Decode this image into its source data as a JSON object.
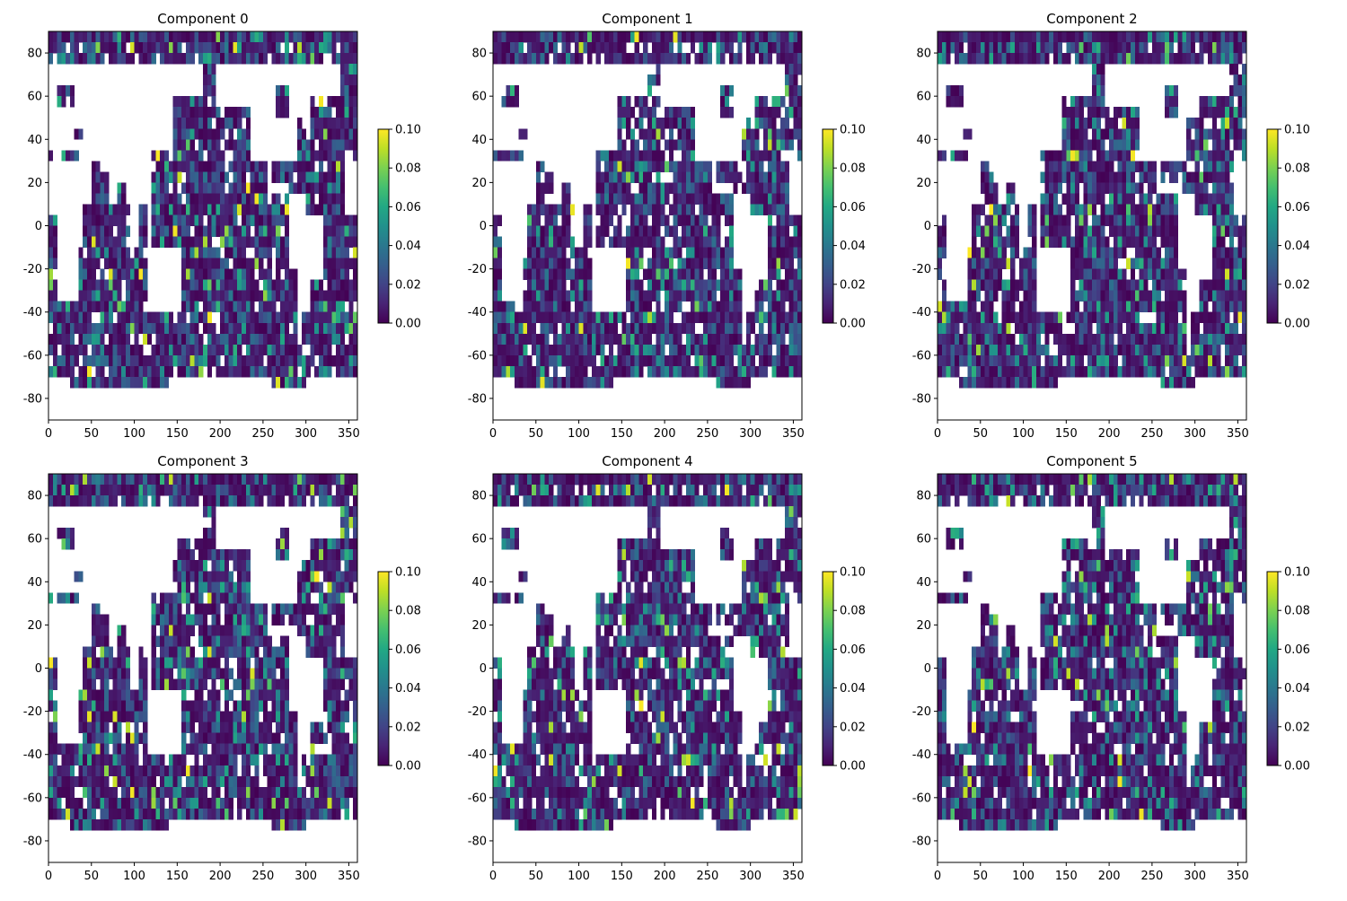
{
  "chart_data": [
    {
      "type": "heatmap",
      "title": "Component 0",
      "seed": 11,
      "xlim": [
        0,
        360
      ],
      "ylim": [
        -90,
        90
      ],
      "x_ticks": [
        "0",
        "50",
        "100",
        "150",
        "200",
        "250",
        "300",
        "350"
      ],
      "y_ticks": [
        "80",
        "60",
        "40",
        "20",
        "0",
        "-20",
        "-40",
        "-60",
        "-80"
      ],
      "colorbar": {
        "vmin": 0.0,
        "vmax": 0.1,
        "ticks": [
          "0.00",
          "0.02",
          "0.04",
          "0.06",
          "0.08",
          "0.10"
        ]
      },
      "colormap": "viridis",
      "land_color": "#ffffff"
    },
    {
      "type": "heatmap",
      "title": "Component 1",
      "seed": 23,
      "xlim": [
        0,
        360
      ],
      "ylim": [
        -90,
        90
      ],
      "x_ticks": [
        "0",
        "50",
        "100",
        "150",
        "200",
        "250",
        "300",
        "350"
      ],
      "y_ticks": [
        "80",
        "60",
        "40",
        "20",
        "0",
        "-20",
        "-40",
        "-60",
        "-80"
      ],
      "colorbar": {
        "vmin": 0.0,
        "vmax": 0.1,
        "ticks": [
          "0.00",
          "0.02",
          "0.04",
          "0.06",
          "0.08",
          "0.10"
        ]
      },
      "colormap": "viridis",
      "land_color": "#ffffff"
    },
    {
      "type": "heatmap",
      "title": "Component 2",
      "seed": 37,
      "xlim": [
        0,
        360
      ],
      "ylim": [
        -90,
        90
      ],
      "x_ticks": [
        "0",
        "50",
        "100",
        "150",
        "200",
        "250",
        "300",
        "350"
      ],
      "y_ticks": [
        "80",
        "60",
        "40",
        "20",
        "0",
        "-20",
        "-40",
        "-60",
        "-80"
      ],
      "colorbar": {
        "vmin": 0.0,
        "vmax": 0.1,
        "ticks": [
          "0.00",
          "0.02",
          "0.04",
          "0.06",
          "0.08",
          "0.10"
        ]
      },
      "colormap": "viridis",
      "land_color": "#ffffff"
    },
    {
      "type": "heatmap",
      "title": "Component 3",
      "seed": 41,
      "xlim": [
        0,
        360
      ],
      "ylim": [
        -90,
        90
      ],
      "x_ticks": [
        "0",
        "50",
        "100",
        "150",
        "200",
        "250",
        "300",
        "350"
      ],
      "y_ticks": [
        "80",
        "60",
        "40",
        "20",
        "0",
        "-20",
        "-40",
        "-60",
        "-80"
      ],
      "colorbar": {
        "vmin": 0.0,
        "vmax": 0.1,
        "ticks": [
          "0.00",
          "0.02",
          "0.04",
          "0.06",
          "0.08",
          "0.10"
        ]
      },
      "colormap": "viridis",
      "land_color": "#ffffff"
    },
    {
      "type": "heatmap",
      "title": "Component 4",
      "seed": 53,
      "xlim": [
        0,
        360
      ],
      "ylim": [
        -90,
        90
      ],
      "x_ticks": [
        "0",
        "50",
        "100",
        "150",
        "200",
        "250",
        "300",
        "350"
      ],
      "y_ticks": [
        "80",
        "60",
        "40",
        "20",
        "0",
        "-20",
        "-40",
        "-60",
        "-80"
      ],
      "colorbar": {
        "vmin": 0.0,
        "vmax": 0.1,
        "ticks": [
          "0.00",
          "0.02",
          "0.04",
          "0.06",
          "0.08",
          "0.10"
        ]
      },
      "colormap": "viridis",
      "land_color": "#ffffff"
    },
    {
      "type": "heatmap",
      "title": "Component 5",
      "seed": 67,
      "xlim": [
        0,
        360
      ],
      "ylim": [
        -90,
        90
      ],
      "x_ticks": [
        "0",
        "50",
        "100",
        "150",
        "200",
        "250",
        "300",
        "350"
      ],
      "y_ticks": [
        "80",
        "60",
        "40",
        "20",
        "0",
        "-20",
        "-40",
        "-60",
        "-80"
      ],
      "colorbar": {
        "vmin": 0.0,
        "vmax": 0.1,
        "ticks": [
          "0.00",
          "0.02",
          "0.04",
          "0.06",
          "0.08",
          "0.10"
        ]
      },
      "colormap": "viridis",
      "land_color": "#ffffff"
    }
  ]
}
